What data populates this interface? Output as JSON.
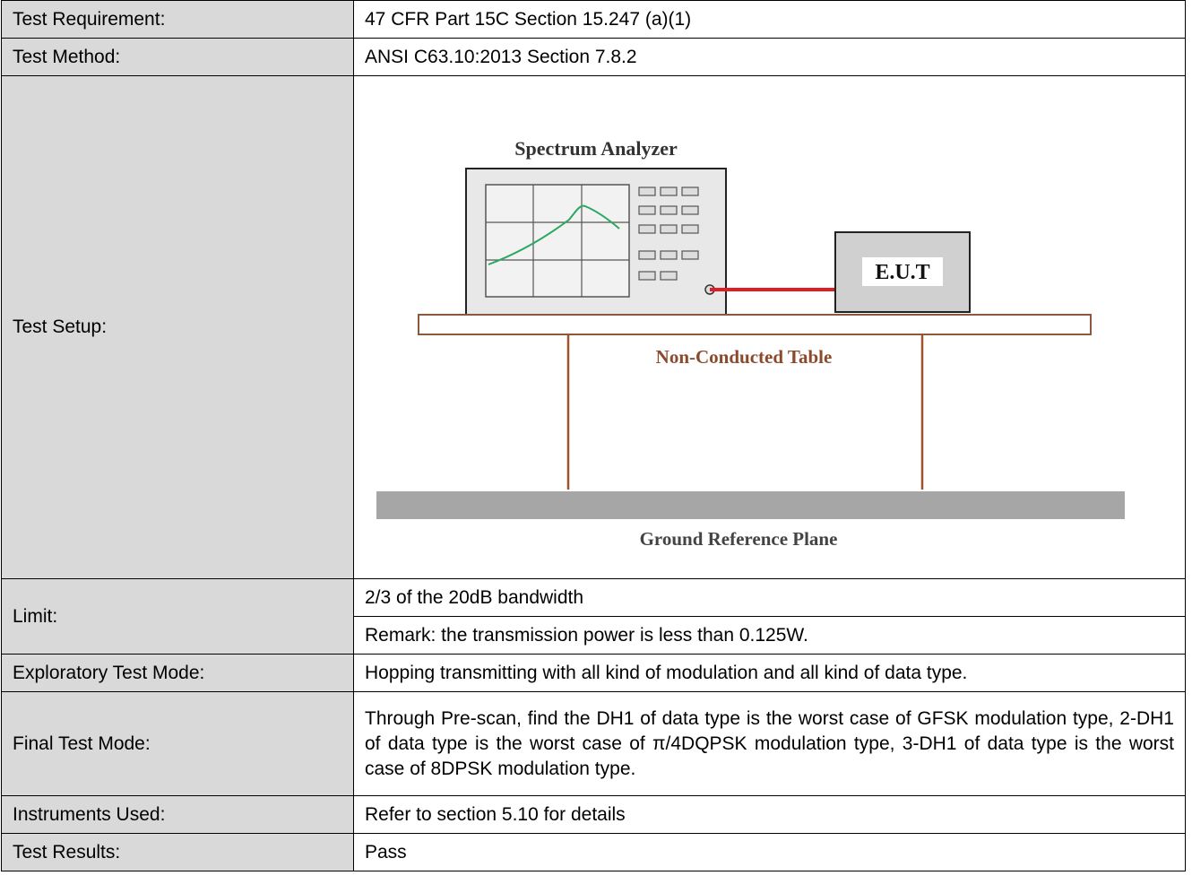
{
  "table": {
    "rows": [
      {
        "label": "Test Requirement:",
        "value": "47 CFR Part 15C Section 15.247 (a)(1)"
      },
      {
        "label": "Test Method:",
        "value": "ANSI C63.10:2013 Section 7.8.2"
      },
      {
        "label": "Test Setup:",
        "diagram": {
          "analyzer": "Spectrum Analyzer",
          "eut": "E.U.T",
          "table": "Non-Conducted Table",
          "ground": "Ground Reference Plane"
        }
      },
      {
        "label": "Limit:",
        "values": [
          "2/3 of the 20dB bandwidth",
          "Remark: the transmission power is less than 0.125W."
        ]
      },
      {
        "label": "Exploratory Test Mode:",
        "value": "Hopping transmitting with all kind of modulation and all kind of data type."
      },
      {
        "label": "Final Test Mode:",
        "value": "Through Pre-scan, find the DH1 of data type is the worst case of GFSK modulation type, 2-DH1 of data type is the worst case of π/4DQPSK modulation type, 3-DH1 of data type is the worst case of 8DPSK modulation type."
      },
      {
        "label": "Instruments Used:",
        "value": "Refer to section 5.10 for details"
      },
      {
        "label": "Test Results:",
        "value": "Pass"
      }
    ]
  }
}
